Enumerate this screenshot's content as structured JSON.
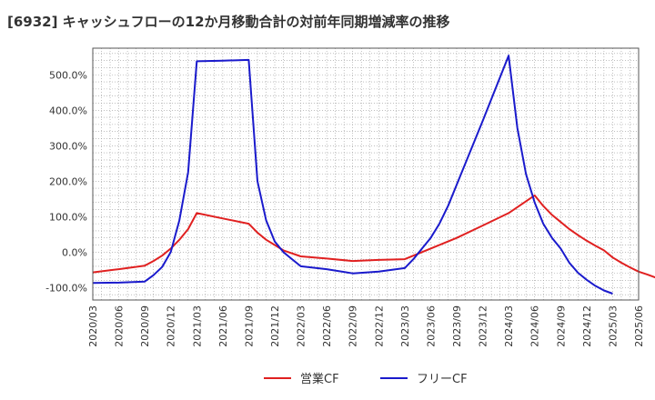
{
  "chart_data": {
    "type": "line",
    "title": "[6932]  キャッシュフローの12か月移動合計の対前年同期増減率の推移",
    "xlabel": "",
    "ylabel": "",
    "x_ticks": [
      "2020/03",
      "2020/06",
      "2020/09",
      "2020/12",
      "2021/03",
      "2021/06",
      "2021/09",
      "2021/12",
      "2022/03",
      "2022/06",
      "2022/09",
      "2022/12",
      "2023/03",
      "2023/06",
      "2023/09",
      "2023/12",
      "2024/03",
      "2024/06",
      "2024/09",
      "2024/12",
      "2025/03",
      "2025/06"
    ],
    "y_ticks": [
      "-100.0%",
      "0.0%",
      "100.0%",
      "200.0%",
      "300.0%",
      "400.0%",
      "500.0%"
    ],
    "y_tick_values": [
      -100,
      0,
      100,
      200,
      300,
      400,
      500
    ],
    "ylim": [
      -135,
      575
    ],
    "grid": true,
    "legend_position": "bottom",
    "series": [
      {
        "name": "営業CF",
        "color": "#e02020",
        "points": [
          [
            0,
            -57
          ],
          [
            3,
            -48
          ],
          [
            6,
            -38
          ],
          [
            7,
            -25
          ],
          [
            8,
            -10
          ],
          [
            9,
            10
          ],
          [
            10,
            35
          ],
          [
            11,
            65
          ],
          [
            12,
            110
          ],
          [
            15,
            95
          ],
          [
            18,
            80
          ],
          [
            19,
            55
          ],
          [
            20,
            35
          ],
          [
            21,
            20
          ],
          [
            22,
            5
          ],
          [
            24,
            -12
          ],
          [
            27,
            -18
          ],
          [
            30,
            -25
          ],
          [
            33,
            -22
          ],
          [
            36,
            -20
          ],
          [
            37,
            -10
          ],
          [
            38,
            0
          ],
          [
            39,
            10
          ],
          [
            42,
            40
          ],
          [
            45,
            75
          ],
          [
            48,
            110
          ],
          [
            51,
            160
          ],
          [
            52,
            130
          ],
          [
            53,
            105
          ],
          [
            54,
            85
          ],
          [
            55,
            65
          ],
          [
            56,
            48
          ],
          [
            57,
            32
          ],
          [
            58,
            18
          ],
          [
            59,
            5
          ],
          [
            60,
            -15
          ],
          [
            61,
            -30
          ],
          [
            62,
            -43
          ],
          [
            63,
            -55
          ],
          [
            64,
            -63
          ],
          [
            65,
            -72
          ]
        ]
      },
      {
        "name": "フリーCF",
        "color": "#1a1acc",
        "points": [
          [
            0,
            -87
          ],
          [
            3,
            -86
          ],
          [
            6,
            -83
          ],
          [
            7,
            -65
          ],
          [
            8,
            -42
          ],
          [
            9,
            0
          ],
          [
            10,
            90
          ],
          [
            11,
            225
          ],
          [
            12,
            538
          ],
          [
            15,
            540
          ],
          [
            18,
            542
          ],
          [
            19,
            200
          ],
          [
            20,
            90
          ],
          [
            21,
            30
          ],
          [
            22,
            0
          ],
          [
            23,
            -20
          ],
          [
            24,
            -40
          ],
          [
            27,
            -48
          ],
          [
            30,
            -60
          ],
          [
            33,
            -55
          ],
          [
            36,
            -45
          ],
          [
            37,
            -20
          ],
          [
            38,
            10
          ],
          [
            39,
            40
          ],
          [
            40,
            80
          ],
          [
            41,
            130
          ],
          [
            42,
            190
          ],
          [
            45,
            370
          ],
          [
            48,
            554
          ],
          [
            49,
            350
          ],
          [
            50,
            220
          ],
          [
            51,
            140
          ],
          [
            52,
            80
          ],
          [
            53,
            40
          ],
          [
            54,
            10
          ],
          [
            55,
            -30
          ],
          [
            56,
            -58
          ],
          [
            57,
            -78
          ],
          [
            58,
            -95
          ],
          [
            59,
            -108
          ],
          [
            60,
            -117
          ]
        ]
      }
    ]
  }
}
